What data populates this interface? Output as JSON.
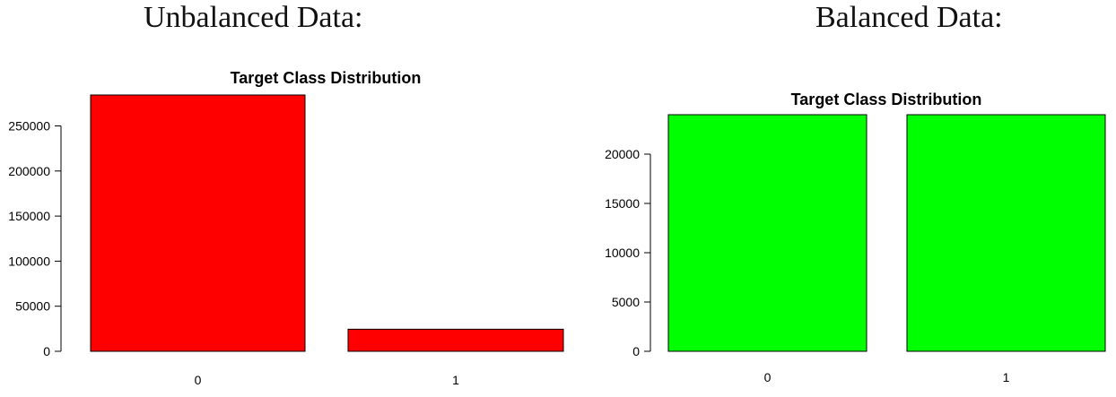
{
  "headings": {
    "left": "Unbalanced Data:",
    "right": "Balanced Data:"
  },
  "chart_data": [
    {
      "type": "bar",
      "title": "Target Class Distribution",
      "xlabel": "",
      "ylabel": "",
      "categories": [
        "0",
        "1"
      ],
      "values": [
        284315,
        24500
      ],
      "yticks": [
        0,
        50000,
        100000,
        150000,
        200000,
        250000
      ],
      "ylim": [
        0,
        284315
      ],
      "color": "#ff0000",
      "grid": false,
      "legend": "none"
    },
    {
      "type": "bar",
      "title": "Target Class Distribution",
      "xlabel": "",
      "ylabel": "",
      "categories": [
        "0",
        "1"
      ],
      "values": [
        24000,
        24000
      ],
      "yticks": [
        0,
        5000,
        10000,
        15000,
        20000
      ],
      "ylim": [
        0,
        24000
      ],
      "color": "#00ff00",
      "grid": false,
      "legend": "none"
    }
  ]
}
